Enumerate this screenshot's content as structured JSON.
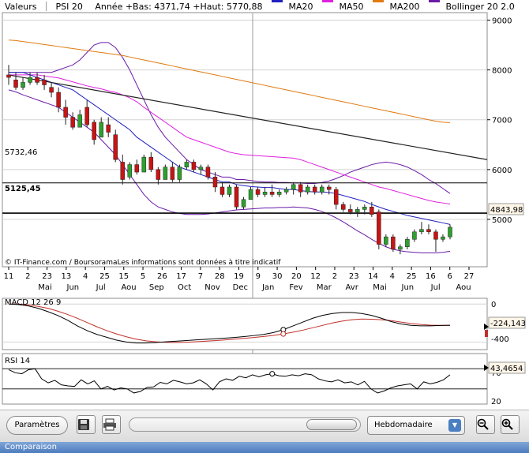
{
  "legend": {
    "items": [
      {
        "label": "Valeurs",
        "color": null
      },
      {
        "label": "PSI 20",
        "color": null
      },
      {
        "label": "Année +Bas: 4371,74 +Haut: 5770,88",
        "color": null
      },
      {
        "label": "MA20",
        "color": "#2020c0"
      },
      {
        "label": "MA50",
        "color": "#e020e0"
      },
      {
        "label": "MA200",
        "color": "#e07a10"
      },
      {
        "label": "Bollinger 20 2.0",
        "color": "#6a1aa8"
      }
    ]
  },
  "colors": {
    "up": "#2ea02e",
    "down": "#c81414",
    "ma20": "#2020c0",
    "ma50": "#e020e0",
    "ma200": "#e07a10",
    "bollinger": "#6a1aa8",
    "macd": "#000000",
    "signal": "#c0302a",
    "grid": "#d4d4d4"
  },
  "price_axis": {
    "ticks": [
      "9000",
      "8000",
      "7000",
      "6000",
      "5000"
    ]
  },
  "annotations": {
    "level_high": "5732,46",
    "level_low": "5125,45",
    "last_price": "4843,98",
    "copyright": "© IT-Finance.com / BoursoramaLes informations sont données à titre indicatif"
  },
  "time_axis": {
    "day_ticks": [
      "11",
      "2",
      "23",
      "13",
      "4",
      "25",
      "15",
      "5",
      "26",
      "17",
      "7",
      "28",
      "19",
      "9",
      "30",
      "20",
      "12",
      "2",
      "23",
      "14",
      "4",
      "25",
      "16",
      "6",
      "27"
    ],
    "month_labels": [
      "Mai",
      "Jun",
      "Jul",
      "Aou",
      "Sep",
      "Oct",
      "Nov",
      "Dec",
      "Jan",
      "Fev",
      "Mar",
      "Avr",
      "Mai",
      "Jun",
      "Jul",
      "Aou"
    ]
  },
  "macd_panel": {
    "label": "MACD 12 26 9",
    "ticks": [
      "0",
      "-400"
    ],
    "value": "-224,143"
  },
  "rsi_panel": {
    "label": "RSI 14",
    "ticks": [
      "70",
      "20"
    ],
    "value": "43,4654"
  },
  "toolbar": {
    "params_label": "Paramètres",
    "period_value": "Hebdomadaire",
    "save_icon": "floppy-disk-icon",
    "print_icon": "printer-icon",
    "zoom_in_icon": "zoom-in-icon",
    "zoom_out_icon": "zoom-out-icon"
  },
  "bottom_label": "Comparaison",
  "chart_data": {
    "type": "candlestick",
    "timeframe": "weekly",
    "series_name": "PSI 20",
    "ylim": [
      4050,
      9150
    ],
    "candles": [
      {
        "o": 7900,
        "h": 8100,
        "l": 7700,
        "c": 7850
      },
      {
        "o": 7800,
        "h": 7950,
        "l": 7600,
        "c": 7650
      },
      {
        "o": 7650,
        "h": 7850,
        "l": 7600,
        "c": 7750
      },
      {
        "o": 7750,
        "h": 7950,
        "l": 7700,
        "c": 7850
      },
      {
        "o": 7850,
        "h": 7950,
        "l": 7700,
        "c": 7750
      },
      {
        "o": 7800,
        "h": 7900,
        "l": 7600,
        "c": 7700
      },
      {
        "o": 7650,
        "h": 7750,
        "l": 7450,
        "c": 7550
      },
      {
        "o": 7550,
        "h": 7650,
        "l": 7150,
        "c": 7250
      },
      {
        "o": 7250,
        "h": 7400,
        "l": 6900,
        "c": 7050
      },
      {
        "o": 7050,
        "h": 7150,
        "l": 6800,
        "c": 6850
      },
      {
        "o": 6850,
        "h": 7200,
        "l": 6850,
        "c": 7100
      },
      {
        "o": 7250,
        "h": 7400,
        "l": 6850,
        "c": 6900
      },
      {
        "o": 6950,
        "h": 7000,
        "l": 6500,
        "c": 6600
      },
      {
        "o": 6650,
        "h": 7050,
        "l": 6650,
        "c": 6950
      },
      {
        "o": 6900,
        "h": 7050,
        "l": 6650,
        "c": 6750
      },
      {
        "o": 6700,
        "h": 6800,
        "l": 6150,
        "c": 6200
      },
      {
        "o": 6150,
        "h": 6300,
        "l": 5700,
        "c": 5800
      },
      {
        "o": 5850,
        "h": 6150,
        "l": 5800,
        "c": 6100
      },
      {
        "o": 6100,
        "h": 6200,
        "l": 5900,
        "c": 5950
      },
      {
        "o": 5950,
        "h": 6300,
        "l": 5950,
        "c": 6250
      },
      {
        "o": 6250,
        "h": 6350,
        "l": 5950,
        "c": 6000
      },
      {
        "o": 6000,
        "h": 6050,
        "l": 5700,
        "c": 5800
      },
      {
        "o": 5800,
        "h": 6100,
        "l": 5800,
        "c": 6050
      },
      {
        "o": 6050,
        "h": 6150,
        "l": 5750,
        "c": 5800
      },
      {
        "o": 5800,
        "h": 6100,
        "l": 5750,
        "c": 6050
      },
      {
        "o": 6050,
        "h": 6200,
        "l": 6000,
        "c": 6150
      },
      {
        "o": 6150,
        "h": 6200,
        "l": 5950,
        "c": 6000
      },
      {
        "o": 6000,
        "h": 6100,
        "l": 5900,
        "c": 6050
      },
      {
        "o": 6050,
        "h": 6100,
        "l": 5800,
        "c": 5850
      },
      {
        "o": 5850,
        "h": 5950,
        "l": 5550,
        "c": 5650
      },
      {
        "o": 5650,
        "h": 5750,
        "l": 5450,
        "c": 5500
      },
      {
        "o": 5500,
        "h": 5700,
        "l": 5450,
        "c": 5650
      },
      {
        "o": 5650,
        "h": 5700,
        "l": 5200,
        "c": 5250
      },
      {
        "o": 5250,
        "h": 5450,
        "l": 5200,
        "c": 5400
      },
      {
        "o": 5400,
        "h": 5650,
        "l": 5400,
        "c": 5600
      },
      {
        "o": 5600,
        "h": 5650,
        "l": 5450,
        "c": 5500
      },
      {
        "o": 5500,
        "h": 5650,
        "l": 5450,
        "c": 5550
      },
      {
        "o": 5550,
        "h": 5700,
        "l": 5450,
        "c": 5500
      },
      {
        "o": 5500,
        "h": 5600,
        "l": 5450,
        "c": 5550
      },
      {
        "o": 5550,
        "h": 5650,
        "l": 5500,
        "c": 5600
      },
      {
        "o": 5600,
        "h": 5750,
        "l": 5500,
        "c": 5700
      },
      {
        "o": 5700,
        "h": 5750,
        "l": 5450,
        "c": 5550
      },
      {
        "o": 5550,
        "h": 5700,
        "l": 5500,
        "c": 5650
      },
      {
        "o": 5650,
        "h": 5700,
        "l": 5500,
        "c": 5550
      },
      {
        "o": 5550,
        "h": 5700,
        "l": 5500,
        "c": 5650
      },
      {
        "o": 5650,
        "h": 5700,
        "l": 5500,
        "c": 5600
      },
      {
        "o": 5600,
        "h": 5650,
        "l": 5200,
        "c": 5300
      },
      {
        "o": 5300,
        "h": 5350,
        "l": 5150,
        "c": 5200
      },
      {
        "o": 5200,
        "h": 5300,
        "l": 5100,
        "c": 5150
      },
      {
        "o": 5150,
        "h": 5250,
        "l": 5050,
        "c": 5200
      },
      {
        "o": 5200,
        "h": 5300,
        "l": 5100,
        "c": 5250
      },
      {
        "o": 5250,
        "h": 5350,
        "l": 5050,
        "c": 5100
      },
      {
        "o": 5150,
        "h": 5200,
        "l": 4400,
        "c": 4500
      },
      {
        "o": 4500,
        "h": 4700,
        "l": 4450,
        "c": 4650
      },
      {
        "o": 4650,
        "h": 4700,
        "l": 4350,
        "c": 4400
      },
      {
        "o": 4400,
        "h": 4500,
        "l": 4300,
        "c": 4450
      },
      {
        "o": 4450,
        "h": 4650,
        "l": 4400,
        "c": 4600
      },
      {
        "o": 4600,
        "h": 4800,
        "l": 4550,
        "c": 4750
      },
      {
        "o": 4750,
        "h": 4950,
        "l": 4700,
        "c": 4800
      },
      {
        "o": 4800,
        "h": 4900,
        "l": 4700,
        "c": 4750
      },
      {
        "o": 4750,
        "h": 4800,
        "l": 4350,
        "c": 4600
      },
      {
        "o": 4600,
        "h": 4700,
        "l": 4550,
        "c": 4650
      },
      {
        "o": 4650,
        "h": 4900,
        "l": 4600,
        "c": 4844
      }
    ],
    "ma20": [
      7950,
      7950,
      7950,
      7900,
      7850,
      7800,
      7750,
      7700,
      7650,
      7600,
      7500,
      7400,
      7300,
      7200,
      7100,
      7000,
      6900,
      6800,
      6650,
      6550,
      6450,
      6350,
      6250,
      6150,
      6050,
      6000,
      5950,
      5900,
      5850,
      5800,
      5750,
      5750,
      5700,
      5680,
      5660,
      5650,
      5640,
      5640,
      5620,
      5600,
      5600,
      5580,
      5560,
      5550,
      5550,
      5540,
      5520,
      5480,
      5440,
      5400,
      5360,
      5300,
      5250,
      5200,
      5160,
      5120,
      5080,
      5050,
      5020,
      4990,
      4960,
      4930,
      4900
    ],
    "ma50": [
      7900,
      7900,
      7900,
      7900,
      7900,
      7880,
      7860,
      7840,
      7800,
      7760,
      7720,
      7680,
      7650,
      7620,
      7580,
      7550,
      7500,
      7440,
      7360,
      7250,
      7150,
      7050,
      6950,
      6850,
      6750,
      6650,
      6600,
      6550,
      6500,
      6450,
      6400,
      6350,
      6320,
      6300,
      6290,
      6280,
      6270,
      6260,
      6250,
      6240,
      6230,
      6200,
      6150,
      6100,
      6050,
      6000,
      5950,
      5900,
      5850,
      5800,
      5750,
      5700,
      5650,
      5620,
      5580,
      5540,
      5500,
      5460,
      5420,
      5380,
      5350,
      5330,
      5310
    ],
    "ma200": [
      8600,
      8590,
      8570,
      8550,
      8530,
      8510,
      8490,
      8470,
      8450,
      8430,
      8410,
      8390,
      8370,
      8350,
      8330,
      8310,
      8290,
      8260,
      8230,
      8200,
      8170,
      8140,
      8110,
      8080,
      8050,
      8020,
      7990,
      7960,
      7930,
      7900,
      7870,
      7840,
      7810,
      7780,
      7750,
      7720,
      7690,
      7660,
      7630,
      7600,
      7570,
      7540,
      7510,
      7480,
      7450,
      7420,
      7390,
      7360,
      7330,
      7300,
      7270,
      7240,
      7210,
      7180,
      7150,
      7120,
      7090,
      7060,
      7030,
      7000,
      6970,
      6950,
      6940
    ],
    "bollinger_upper": [
      7950,
      7950,
      7950,
      7950,
      7950,
      7950,
      7950,
      8000,
      8050,
      8100,
      8200,
      8350,
      8500,
      8550,
      8550,
      8450,
      8250,
      8000,
      7700,
      7400,
      7100,
      6850,
      6650,
      6500,
      6350,
      6200,
      6100,
      6000,
      5950,
      5900,
      5850,
      5850,
      5800,
      5800,
      5780,
      5760,
      5750,
      5750,
      5740,
      5740,
      5730,
      5730,
      5720,
      5720,
      5740,
      5770,
      5820,
      5880,
      5950,
      6000,
      6050,
      6100,
      6130,
      6150,
      6130,
      6100,
      6050,
      5980,
      5900,
      5800,
      5720,
      5620,
      5520
    ],
    "bollinger_lower": [
      7600,
      7560,
      7500,
      7450,
      7400,
      7350,
      7300,
      7250,
      7150,
      7050,
      6950,
      6850,
      6750,
      6600,
      6450,
      6300,
      6100,
      5900,
      5700,
      5500,
      5350,
      5250,
      5200,
      5150,
      5120,
      5100,
      5100,
      5100,
      5110,
      5130,
      5150,
      5170,
      5190,
      5200,
      5210,
      5220,
      5230,
      5230,
      5240,
      5240,
      5250,
      5240,
      5230,
      5200,
      5160,
      5100,
      5030,
      4950,
      4860,
      4770,
      4690,
      4600,
      4520,
      4450,
      4400,
      4370,
      4350,
      4340,
      4330,
      4330,
      4330,
      4340,
      4360
    ],
    "trendline": {
      "start": 7900,
      "end": 6200
    },
    "levels": [
      5732.46,
      5125.45
    ],
    "macd": {
      "ylim": [
        -480,
        60
      ],
      "macd": [
        0,
        -5,
        -20,
        -45,
        -80,
        -120,
        -170,
        -230,
        -280,
        -320,
        -350,
        -380,
        -400,
        -410,
        -410,
        -405,
        -398,
        -392,
        -385,
        -378,
        -372,
        -366,
        -360,
        -352,
        -343,
        -332,
        -320,
        -300,
        -270,
        -230,
        -190,
        -150,
        -120,
        -100,
        -90,
        -90,
        -100,
        -120,
        -150,
        -185,
        -210,
        -225,
        -230,
        -230,
        -226,
        -224
      ],
      "signal": [
        0,
        0,
        -10,
        -25,
        -45,
        -75,
        -110,
        -150,
        -195,
        -240,
        -280,
        -315,
        -345,
        -370,
        -388,
        -398,
        -403,
        -405,
        -403,
        -398,
        -392,
        -385,
        -378,
        -370,
        -362,
        -352,
        -342,
        -330,
        -315,
        -296,
        -275,
        -250,
        -225,
        -200,
        -180,
        -165,
        -158,
        -160,
        -165,
        -175,
        -190,
        -205,
        -215,
        -222,
        -225,
        -226
      ]
    },
    "rsi": {
      "ylim": [
        0,
        100
      ],
      "values": [
        68,
        62,
        60,
        68,
        70,
        50,
        42,
        47,
        38,
        36,
        35,
        48,
        40,
        46,
        30,
        35,
        28,
        32,
        30,
        22,
        25,
        33,
        34,
        43,
        40,
        47,
        44,
        40,
        42,
        48,
        40,
        28,
        44,
        50,
        47,
        55,
        52,
        58,
        54,
        58,
        60,
        56,
        55,
        58,
        56,
        60,
        58,
        50,
        46,
        44,
        48,
        42,
        44,
        38,
        45,
        30,
        22,
        26,
        32,
        36,
        38,
        40,
        30,
        44,
        40,
        43,
        48,
        58
      ]
    }
  }
}
